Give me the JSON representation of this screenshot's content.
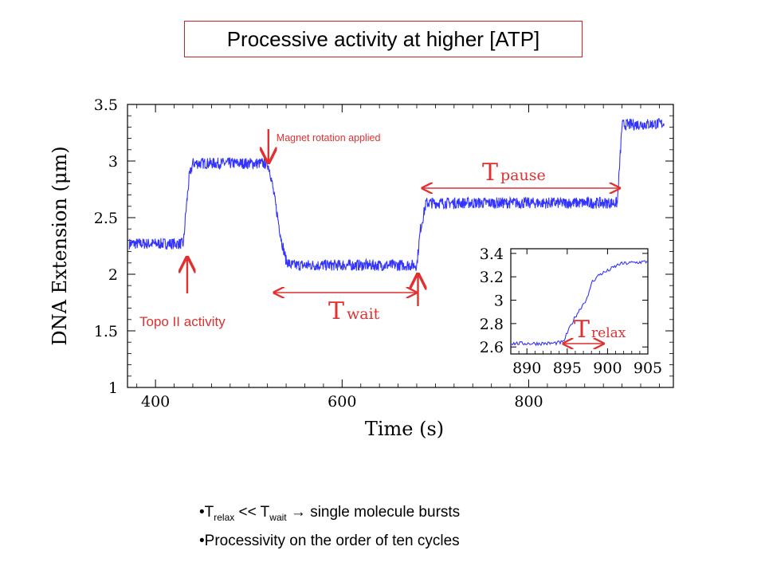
{
  "title": "Processive activity at higher [ATP]",
  "colors": {
    "trace": "#3333ff",
    "annotation": "#e03030",
    "axis": "#000000",
    "title_border": "#cc2222"
  },
  "chart_data": {
    "type": "line",
    "xlabel": "Time (s)",
    "ylabel": "DNA Extension (μm)",
    "xlim": [
      370,
      955
    ],
    "ylim": [
      1,
      3.5
    ],
    "x_ticks": [
      "400",
      "600",
      "800"
    ],
    "y_ticks": [
      "1",
      "1.5",
      "2",
      "2.5",
      "3",
      "3.5"
    ],
    "grid": false,
    "series": [
      {
        "name": "",
        "x": [
          372,
          430,
          432,
          436,
          440,
          520,
          523,
          527,
          535,
          540,
          545,
          680,
          684,
          690,
          895,
          900,
          945
        ],
        "y": [
          2.27,
          2.27,
          2.5,
          2.85,
          2.98,
          2.98,
          2.9,
          2.7,
          2.3,
          2.12,
          2.08,
          2.08,
          2.4,
          2.63,
          2.63,
          3.32,
          3.33
        ]
      }
    ],
    "annotations": [
      {
        "text": "Magnet rotation applied",
        "x": 521
      },
      {
        "text": "Topo II activity",
        "x": 434
      },
      {
        "label_main": "T",
        "label_sub": "wait",
        "x_start": 527,
        "x_end": 683
      },
      {
        "label_main": "T",
        "label_sub": "pause",
        "x_start": 686,
        "x_end": 899
      }
    ],
    "inset": {
      "type": "line",
      "xlim": [
        888,
        905
      ],
      "ylim": [
        2.54,
        3.44
      ],
      "x_ticks": [
        "890",
        "895",
        "900",
        "905"
      ],
      "y_ticks": [
        "2.6",
        "2.8",
        "3",
        "3.2",
        "3.4"
      ],
      "series": [
        {
          "name": "",
          "x": [
            888,
            893,
            894.5,
            895,
            896,
            897,
            897.6,
            898,
            899,
            900,
            901.5,
            903,
            905
          ],
          "y": [
            2.63,
            2.63,
            2.64,
            2.72,
            2.86,
            2.97,
            3.03,
            3.15,
            3.22,
            3.25,
            3.31,
            3.32,
            3.33
          ]
        }
      ],
      "annotation": {
        "label_main": "T",
        "label_sub": "relax",
        "x_start": 894.5,
        "x_end": 899.5
      }
    }
  },
  "bullets": [
    {
      "parts": [
        "T",
        "relax",
        " << T",
        "wait",
        "  →  single molecule bursts"
      ]
    },
    {
      "text": "Processivity on the order of ten cycles"
    }
  ]
}
